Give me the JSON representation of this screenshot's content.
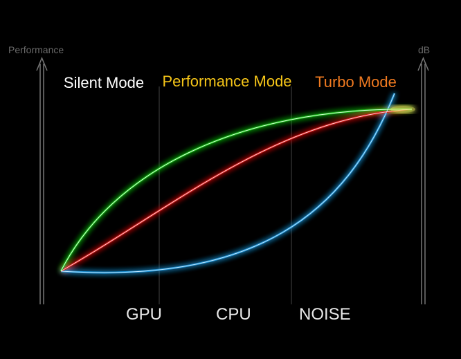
{
  "axes": {
    "left_label": "Performance",
    "right_label": "dB"
  },
  "modes": [
    "Silent Mode",
    "Performance Mode",
    "Turbo Mode"
  ],
  "legend": [
    "GPU",
    "CPU",
    "NOISE"
  ]
}
